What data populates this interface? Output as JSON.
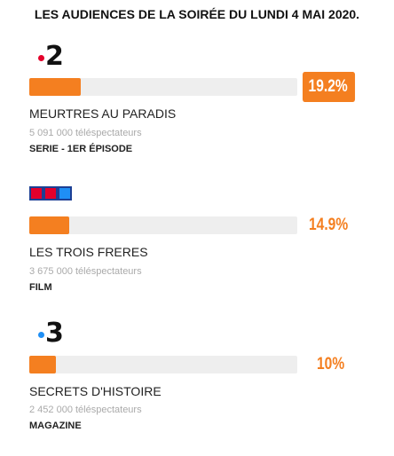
{
  "header": {
    "title": "LES AUDIENCES DE LA SOIRÉE DU LUNDI 4 MAI 2020."
  },
  "colors": {
    "accent": "#f47f20",
    "track": "#eeeeee",
    "france2_dot": "#e4002b",
    "france3_dot": "#1f8ff5",
    "tf1_bg": "#1c3f94"
  },
  "chart_data": {
    "type": "bar",
    "orientation": "horizontal",
    "xlim": [
      0,
      100
    ],
    "entries": [
      {
        "channel_logo": "france-2-logo",
        "logo_text": "2",
        "value": 19.2,
        "value_label": "19.2%",
        "programme": "MEURTRES AU PARADIS",
        "viewers": "5 091 000 téléspectateurs",
        "genre": "SERIE - 1ER ÉPISODE",
        "highlighted": true
      },
      {
        "channel_logo": "tf1-logo",
        "logo_text": "TF1",
        "value": 14.9,
        "value_label": "14.9%",
        "programme": "LES TROIS FRERES",
        "viewers": "3 675 000 téléspectateurs",
        "genre": "FILM",
        "highlighted": false
      },
      {
        "channel_logo": "france-3-logo",
        "logo_text": "3",
        "value": 10,
        "value_label": "10%",
        "programme": "SECRETS D'HISTOIRE",
        "viewers": "2 452 000 téléspectateurs",
        "genre": "MAGAZINE",
        "highlighted": false
      }
    ]
  }
}
